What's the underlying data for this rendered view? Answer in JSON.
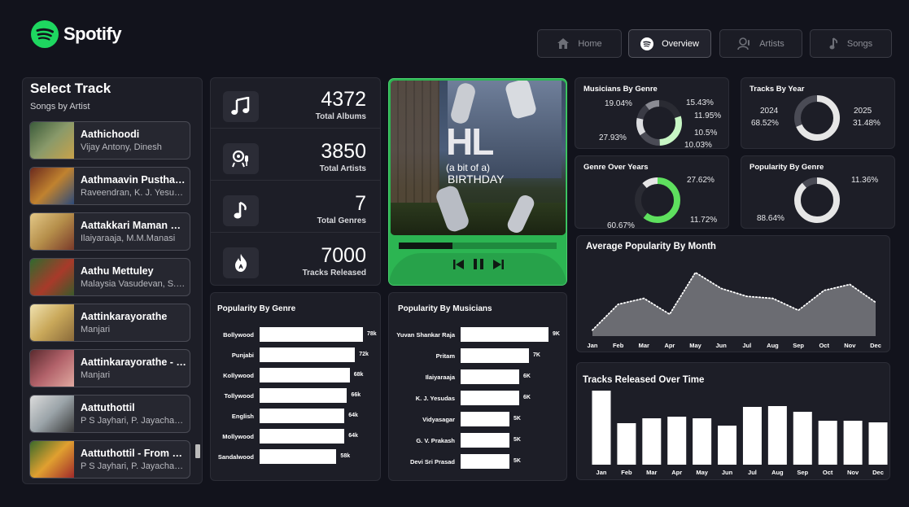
{
  "brand": {
    "name": "Spotify",
    "color": "#1ed760"
  },
  "nav": [
    {
      "label": "Home",
      "icon": "home-icon",
      "active": false
    },
    {
      "label": "Overview",
      "icon": "spotify-icon",
      "active": true
    },
    {
      "label": "Artists",
      "icon": "artist-icon",
      "active": false
    },
    {
      "label": "Songs",
      "icon": "music-note-icon",
      "active": false
    }
  ],
  "track_panel": {
    "title": "Select Track",
    "subtitle": "Songs by Artist",
    "tracks": [
      {
        "name": "Aathichoodi",
        "artist": "Vijay Antony, Dinesh"
      },
      {
        "name": "Aathmaavin Pusthakathil",
        "artist": "Raveendran, K. J. Yesudas"
      },
      {
        "name": "Aattakkari Maman Ponnu",
        "artist": "Ilaiyaraaja, M.M.Manasi"
      },
      {
        "name": "Aathu Mettuley",
        "artist": "Malaysia Vasudevan, S. Janaki"
      },
      {
        "name": "Aattinkarayorathe",
        "artist": "Manjari"
      },
      {
        "name": "Aattinkarayorathe - Female",
        "artist": "Manjari"
      },
      {
        "name": "Aattuthottil",
        "artist": "P S Jayhari, P. Jayachandran"
      },
      {
        "name": "Aattuthottil - From \"Ambili\"",
        "artist": "P S Jayhari, P. Jayachandran"
      }
    ]
  },
  "kpis": [
    {
      "value": "4372",
      "label": "Total Albums",
      "icon": "music-notes-icon"
    },
    {
      "value": "3850",
      "label": "Total Artists",
      "icon": "singer-icon"
    },
    {
      "value": "7",
      "label": "Total Genres",
      "icon": "music-note-icon"
    },
    {
      "value": "7000",
      "label": "Tracks Released",
      "icon": "fire-icon"
    }
  ],
  "album_art": {
    "text_big": "HL",
    "text_small": "(a bit of a)",
    "text_birthday": "BIRTHDAY",
    "progress": 0.34
  },
  "popularity_by_genre_bar": {
    "title": "Popularity By Genre",
    "chart_data": {
      "type": "bar",
      "orientation": "horizontal",
      "categories": [
        "Bollywood",
        "Punjabi",
        "Kollywood",
        "Tollywood",
        "English",
        "Mollywood",
        "Sandalwood"
      ],
      "values": [
        78,
        72,
        68,
        66,
        64,
        64,
        58
      ],
      "value_labels": [
        "78k",
        "72k",
        "68k",
        "66k",
        "64k",
        "64k",
        "58k"
      ],
      "title": "Popularity By Genre"
    }
  },
  "popularity_by_musicians": {
    "title": "Popularity By Musicians",
    "chart_data": {
      "type": "bar",
      "orientation": "horizontal",
      "categories": [
        "Yuvan Shankar Raja",
        "Pritam",
        "Ilaiyaraaja",
        "K. J. Yesudas",
        "Vidyasagar",
        "G. V. Prakash",
        "Devi Sri Prasad"
      ],
      "values": [
        9,
        7,
        6,
        6,
        5,
        5,
        5
      ],
      "value_labels": [
        "9K",
        "7K",
        "6K",
        "6K",
        "5K",
        "5K",
        "5K"
      ],
      "title": "Popularity By Musicians"
    }
  },
  "donuts": [
    {
      "title": "Musicians By Genre",
      "labels": [
        "19.04%",
        "27.93%",
        "15.43%",
        "11.95%",
        "10.5%",
        "10.03%"
      ],
      "chart_data": {
        "type": "pie",
        "values": [
          19.04,
          27.93,
          15.43,
          11.95,
          10.5,
          10.03
        ],
        "colors": [
          "#2a2b33",
          "#c8f7c5",
          "#4a4b55",
          "#dcdde0",
          "#3a3b45",
          "#8a8b93"
        ]
      }
    },
    {
      "title": "Tracks By Year",
      "labels": [
        "2024",
        "68.52%",
        "2025",
        "31.48%"
      ],
      "chart_data": {
        "type": "pie",
        "categories": [
          "2024",
          "2025"
        ],
        "values": [
          68.52,
          31.48
        ],
        "colors": [
          "#e6e6e6",
          "#4a4b55"
        ]
      }
    },
    {
      "title": "Genre Over Years",
      "labels": [
        "27.62%",
        "60.67%",
        "11.72%"
      ],
      "chart_data": {
        "type": "pie",
        "values": [
          60.67,
          27.62,
          11.72
        ],
        "colors": [
          "#5ee05e",
          "#2a2b33",
          "#e6e6e6"
        ]
      }
    },
    {
      "title": "Popularity By Genre",
      "labels": [
        "11.36%",
        "88.64%"
      ],
      "chart_data": {
        "type": "pie",
        "values": [
          88.64,
          11.36
        ],
        "colors": [
          "#e6e6e6",
          "#4a4b55"
        ]
      }
    }
  ],
  "avg_popularity": {
    "title": "Average Popularity By Month",
    "chart_data": {
      "type": "area",
      "categories": [
        "Jan",
        "Feb",
        "Mar",
        "Apr",
        "May",
        "Jun",
        "Jul",
        "Aug",
        "Sep",
        "Oct",
        "Nov",
        "Dec"
      ],
      "values": [
        33,
        46,
        49,
        41,
        62,
        54,
        50,
        49,
        43,
        53,
        56,
        47
      ]
    }
  },
  "tracks_over_time": {
    "title": "Tracks Released Over Time",
    "chart_data": {
      "type": "bar",
      "categories": [
        "Jan",
        "Feb",
        "Mar",
        "Apr",
        "May",
        "Jun",
        "Jul",
        "Aug",
        "Sep",
        "Oct",
        "Nov",
        "Dec"
      ],
      "values": [
        91,
        51,
        57,
        59,
        57,
        48,
        71,
        72,
        65,
        54,
        54,
        52
      ]
    }
  }
}
